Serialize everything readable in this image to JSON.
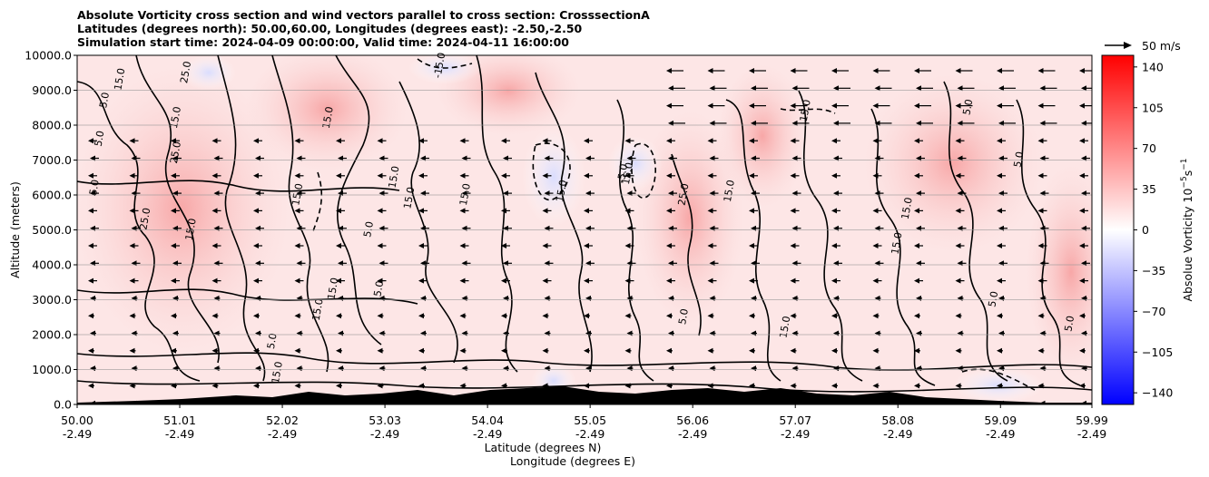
{
  "chart_data": {
    "type": "contour",
    "title_lines": [
      "Absolute Vorticity cross section and wind vectors parallel to cross section: CrosssectionA",
      "Latitudes (degrees north): 50.00,60.00, Longitudes (degrees east): -2.50,-2.50",
      "Simulation start time: 2024-04-09 00:00:00, Valid time: 2024-04-11 16:00:00"
    ],
    "ylabel": "Altitude (meters)",
    "xlabel_lat": "Latitude (degrees N)",
    "xlabel_lon": "Longitude (degrees E)",
    "ylim": [
      0,
      10000
    ],
    "y_ticks": [
      "0.0",
      "1000.0",
      "2000.0",
      "3000.0",
      "4000.0",
      "5000.0",
      "6000.0",
      "7000.0",
      "8000.0",
      "9000.0",
      "10000.0"
    ],
    "y_tick_values": [
      0,
      1000,
      2000,
      3000,
      4000,
      5000,
      6000,
      7000,
      8000,
      9000,
      10000
    ],
    "x_range": [
      50.0,
      59.99
    ],
    "x_ticks": [
      {
        "lat": "50.00",
        "lon": "-2.49",
        "value": 50.0
      },
      {
        "lat": "51.01",
        "lon": "-2.49",
        "value": 51.01
      },
      {
        "lat": "52.02",
        "lon": "-2.49",
        "value": 52.02
      },
      {
        "lat": "53.03",
        "lon": "-2.49",
        "value": 53.03
      },
      {
        "lat": "54.04",
        "lon": "-2.49",
        "value": 54.04
      },
      {
        "lat": "55.05",
        "lon": "-2.49",
        "value": 55.05
      },
      {
        "lat": "56.06",
        "lon": "-2.49",
        "value": 56.06
      },
      {
        "lat": "57.07",
        "lon": "-2.49",
        "value": 57.07
      },
      {
        "lat": "58.08",
        "lon": "-2.49",
        "value": 58.08
      },
      {
        "lat": "59.09",
        "lon": "-2.49",
        "value": 59.09
      },
      {
        "lat": "59.99",
        "lon": "-2.49",
        "value": 59.99
      }
    ],
    "colorbar": {
      "label": "Absolue Vorticity 10",
      "label_exp": "−5",
      "label_unit": "s",
      "label_unit_exp": "−1",
      "range": [
        -150,
        150
      ],
      "ticks": [
        "140",
        "105",
        "70",
        "35",
        "0",
        "−35",
        "−70",
        "−105",
        "−140"
      ],
      "tick_values": [
        140,
        105,
        70,
        35,
        0,
        -35,
        -70,
        -105,
        -140
      ],
      "colormap": "bwr",
      "low_color": "#0000ff",
      "mid_color": "#ffffff",
      "high_color": "#ff0000"
    },
    "vector_key": {
      "label": "50 m/s",
      "value": 50
    },
    "contour_labels": [
      {
        "text": "5.0",
        "lat": 50.3,
        "alt": 8700
      },
      {
        "text": "15.0",
        "lat": 50.45,
        "alt": 9300
      },
      {
        "text": "5.0",
        "lat": 50.25,
        "alt": 7600
      },
      {
        "text": "25.0",
        "lat": 51.1,
        "alt": 9500
      },
      {
        "text": "15.0",
        "lat": 51.0,
        "alt": 8200
      },
      {
        "text": "25.0",
        "lat": 51.0,
        "alt": 7200
      },
      {
        "text": "5.0",
        "lat": 50.2,
        "alt": 6200
      },
      {
        "text": "25.0",
        "lat": 50.7,
        "alt": 5300
      },
      {
        "text": "15.0",
        "lat": 51.15,
        "alt": 5000
      },
      {
        "text": "15.0",
        "lat": 52.5,
        "alt": 8200
      },
      {
        "text": "15.0",
        "lat": 52.2,
        "alt": 6000
      },
      {
        "text": "15.0",
        "lat": 53.15,
        "alt": 6500
      },
      {
        "text": "15.0",
        "lat": 53.3,
        "alt": 5900
      },
      {
        "text": "5.0",
        "lat": 52.9,
        "alt": 5000
      },
      {
        "text": "-15.0",
        "lat": 53.6,
        "alt": 9700
      },
      {
        "text": "15.0",
        "lat": 53.85,
        "alt": 6000
      },
      {
        "text": "15.0",
        "lat": 54.8,
        "alt": 6100
      },
      {
        "text": "-5.0",
        "lat": 55.4,
        "alt": 6600
      },
      {
        "text": "15.0",
        "lat": 55.45,
        "alt": 6600
      },
      {
        "text": "25.0",
        "lat": 56.0,
        "alt": 6000
      },
      {
        "text": "15.0",
        "lat": 56.45,
        "alt": 6100
      },
      {
        "text": "15.0",
        "lat": 57.2,
        "alt": 8400
      },
      {
        "text": "5.0",
        "lat": 58.8,
        "alt": 8500
      },
      {
        "text": "5.0",
        "lat": 59.3,
        "alt": 7000
      },
      {
        "text": "15.0",
        "lat": 58.2,
        "alt": 5600
      },
      {
        "text": "15.0",
        "lat": 58.1,
        "alt": 4600
      },
      {
        "text": "5.0",
        "lat": 53.0,
        "alt": 3300
      },
      {
        "text": "15.0",
        "lat": 52.55,
        "alt": 3300
      },
      {
        "text": "15.0",
        "lat": 52.4,
        "alt": 2700
      },
      {
        "text": "5.0",
        "lat": 56.0,
        "alt": 2500
      },
      {
        "text": "15.0",
        "lat": 57.0,
        "alt": 2200
      },
      {
        "text": "5.0",
        "lat": 59.05,
        "alt": 3000
      },
      {
        "text": "5.0",
        "lat": 59.8,
        "alt": 2300
      },
      {
        "text": "5.0",
        "lat": 51.95,
        "alt": 1800
      },
      {
        "text": "15.0",
        "lat": 52.0,
        "alt": 900
      }
    ]
  }
}
